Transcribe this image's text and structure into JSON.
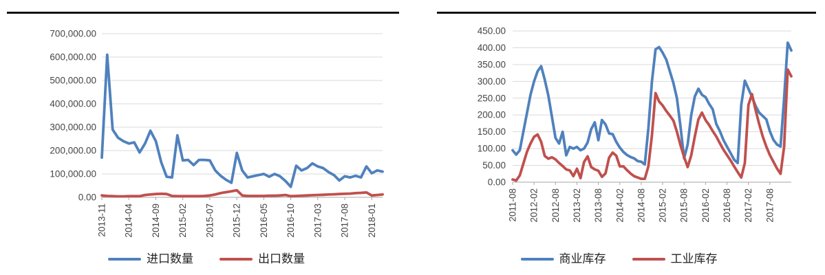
{
  "page": {
    "background": "#ffffff",
    "rule_color": "#111111"
  },
  "chart_data": [
    {
      "type": "line",
      "title": "",
      "xlabel": "",
      "ylabel": "",
      "grid": true,
      "legend_position": "bottom-center",
      "x_start": "2013-11",
      "x_end": "2018-03",
      "x_frequency": "monthly",
      "y_axis": {
        "min": 0,
        "max": 700000,
        "step": 100000,
        "labels": [
          "700,000.00",
          "600,000.00",
          "500,000.00",
          "400,000.00",
          "300,000.00",
          "200,000.00",
          "100,000.00",
          "0.00"
        ]
      },
      "x_axis": {
        "tick_every": 5,
        "tick_labels": [
          "2013-11",
          "2014-04",
          "2014-09",
          "2015-02",
          "2015-07",
          "2015-12",
          "2016-05",
          "2016-10",
          "2017-03",
          "2017-08",
          "2018-01"
        ]
      },
      "series": [
        {
          "name": "进口数量",
          "color": "#4F81BD",
          "values": [
            170000,
            610000,
            290000,
            255000,
            240000,
            230000,
            235000,
            192000,
            230000,
            285000,
            240000,
            150000,
            88000,
            85000,
            265000,
            158000,
            160000,
            138000,
            160000,
            160000,
            158000,
            115000,
            92000,
            75000,
            62000,
            190000,
            115000,
            85000,
            90000,
            95000,
            100000,
            88000,
            100000,
            90000,
            70000,
            45000,
            135000,
            115000,
            125000,
            145000,
            132000,
            125000,
            108000,
            95000,
            72000,
            90000,
            85000,
            92000,
            85000,
            132000,
            103000,
            115000,
            110000
          ]
        },
        {
          "name": "出口数量",
          "color": "#C0504D",
          "values": [
            8000,
            6000,
            5000,
            4000,
            4000,
            5000,
            5000,
            5000,
            10000,
            12000,
            14000,
            15000,
            14000,
            6000,
            5000,
            5000,
            5000,
            5000,
            5000,
            6000,
            8000,
            12000,
            18000,
            22000,
            26000,
            30000,
            8000,
            6000,
            6000,
            6000,
            6000,
            7000,
            7000,
            8000,
            10000,
            5000,
            6000,
            7000,
            8000,
            9000,
            10000,
            11000,
            12000,
            13000,
            14000,
            15000,
            16000,
            18000,
            19000,
            21000,
            8000,
            10000,
            12000
          ]
        }
      ]
    },
    {
      "type": "line",
      "title": "",
      "xlabel": "",
      "ylabel": "",
      "grid": true,
      "legend_position": "bottom-center",
      "x_start": "2011-08",
      "x_end": "2018-02",
      "x_frequency": "monthly",
      "y_axis": {
        "min": 0,
        "max": 450,
        "step": 50,
        "labels": [
          "450.00",
          "400.00",
          "350.00",
          "300.00",
          "250.00",
          "200.00",
          "150.00",
          "100.00",
          "50.00",
          "0.00"
        ]
      },
      "x_axis": {
        "tick_every": 6,
        "tick_labels": [
          "2011-08",
          "2012-02",
          "2012-08",
          "2013-02",
          "2013-08",
          "2014-02",
          "2014-08",
          "2015-02",
          "2015-08",
          "2016-02",
          "2016-08",
          "2017-02",
          "2017-08"
        ]
      },
      "series": [
        {
          "name": "商业库存",
          "color": "#4F81BD",
          "values": [
            95,
            82,
            95,
            150,
            205,
            260,
            300,
            330,
            345,
            305,
            258,
            195,
            132,
            115,
            150,
            80,
            105,
            100,
            105,
            95,
            100,
            118,
            158,
            178,
            125,
            185,
            172,
            145,
            143,
            120,
            103,
            90,
            81,
            75,
            71,
            63,
            61,
            53,
            160,
            300,
            395,
            402,
            385,
            365,
            330,
            295,
            250,
            165,
            71,
            112,
            200,
            255,
            278,
            260,
            253,
            233,
            217,
            173,
            152,
            126,
            106,
            87,
            67,
            57,
            230,
            302,
            278,
            254,
            227,
            207,
            197,
            187,
            152,
            126,
            112,
            106,
            250,
            415,
            392
          ]
        },
        {
          "name": "工业库存",
          "color": "#C0504D",
          "values": [
            8,
            5,
            20,
            55,
            90,
            115,
            135,
            142,
            120,
            78,
            70,
            74,
            68,
            57,
            48,
            38,
            35,
            18,
            40,
            12,
            60,
            77,
            45,
            38,
            34,
            16,
            26,
            73,
            88,
            79,
            47,
            47,
            36,
            26,
            18,
            14,
            10,
            10,
            47,
            140,
            265,
            240,
            228,
            212,
            198,
            183,
            150,
            110,
            75,
            45,
            80,
            136,
            187,
            207,
            185,
            170,
            152,
            136,
            116,
            97,
            81,
            65,
            47,
            30,
            14,
            57,
            230,
            262,
            215,
            173,
            136,
            106,
            81,
            61,
            41,
            25,
            106,
            335,
            315
          ]
        }
      ]
    }
  ]
}
